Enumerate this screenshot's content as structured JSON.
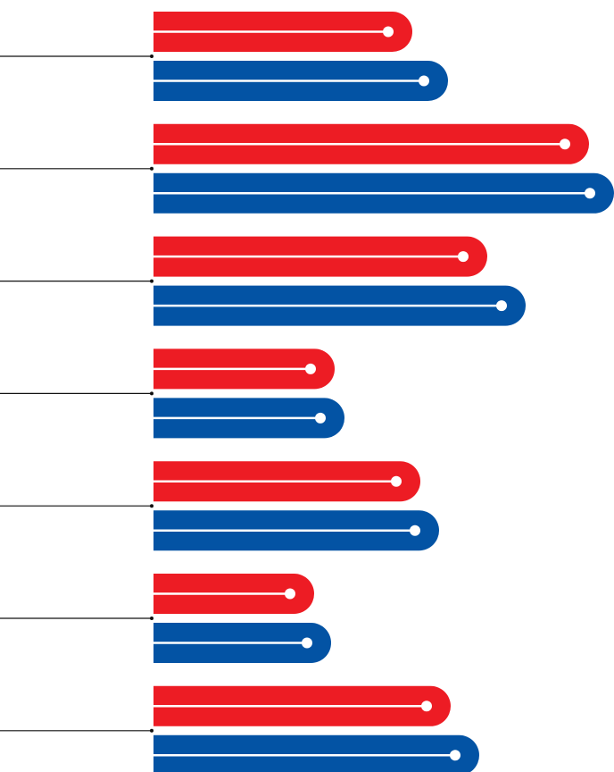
{
  "chart_data": {
    "type": "bar",
    "orientation": "horizontal",
    "categories": [
      null,
      null,
      null,
      null,
      null,
      null,
      null
    ],
    "series": [
      {
        "color": "#ed1c24",
        "values": [
          290,
          488,
          374,
          203,
          299,
          180,
          333
        ]
      },
      {
        "color": "#0353a4",
        "values": [
          330,
          516,
          417,
          214,
          320,
          199,
          365
        ]
      }
    ],
    "xlim": [
      0,
      516
    ]
  }
}
